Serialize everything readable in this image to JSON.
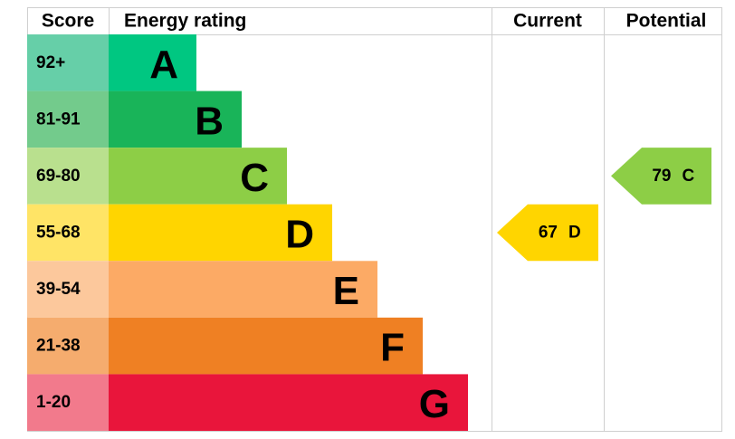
{
  "header": {
    "score": "Score",
    "rating": "Energy rating",
    "current": "Current",
    "potential": "Potential"
  },
  "bands": [
    {
      "score": "92+",
      "letter": "A",
      "color": "#00c781",
      "score_color": "#66cfa8"
    },
    {
      "score": "81-91",
      "letter": "B",
      "color": "#19b459",
      "score_color": "#73cb8c"
    },
    {
      "score": "69-80",
      "letter": "C",
      "color": "#8dce46",
      "score_color": "#b9e08e"
    },
    {
      "score": "55-68",
      "letter": "D",
      "color": "#ffd500",
      "score_color": "#ffe466"
    },
    {
      "score": "39-54",
      "letter": "E",
      "color": "#fcaa65",
      "score_color": "#fcc89c"
    },
    {
      "score": "21-38",
      "letter": "F",
      "color": "#ef8023",
      "score_color": "#f5ac6e"
    },
    {
      "score": "1-20",
      "letter": "G",
      "color": "#e9153b",
      "score_color": "#f27a8c"
    }
  ],
  "current": {
    "value": 67,
    "letter": "D"
  },
  "potential": {
    "value": 79,
    "letter": "C"
  }
}
